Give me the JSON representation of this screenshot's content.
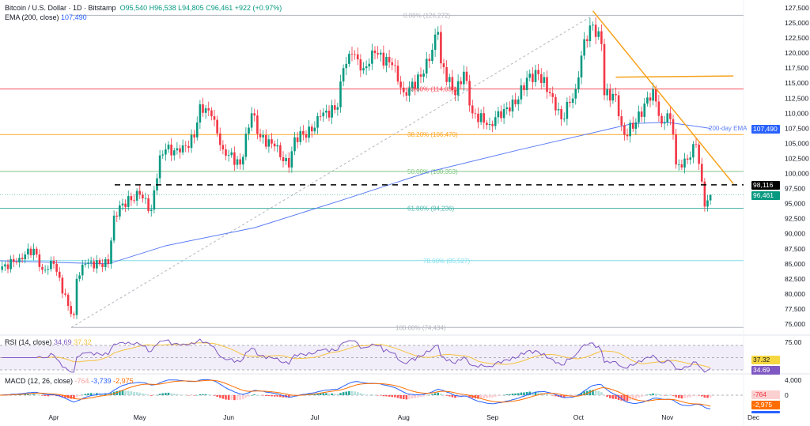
{
  "header": {
    "symbol": "Bitcoin / U.S. Dollar · 1D · Bitstamp",
    "open": "O95,540",
    "high": "H96,538",
    "low": "L94,805",
    "close": "C96,461",
    "change": "+922 (+0.97%)",
    "ema_label": "EMA (200, close)",
    "ema_value": "107,490"
  },
  "rsi_legend": {
    "label": "RSI (14, close)",
    "rsi": "34.69",
    "ma": "37.32"
  },
  "macd_legend": {
    "label": "MACD (12, 26, close)",
    "hist": "-764",
    "macd": "-3,739",
    "signal": "-2,975"
  },
  "price_tags": {
    "ema": "107,490",
    "level": "98,116",
    "last": "96,461",
    "rsi_ma": "37.32",
    "rsi": "34.69",
    "macd_hist": "-764",
    "macd_signal": "-2,975"
  },
  "ema_annotation": "200-day EMA",
  "colors": {
    "up": "#089981",
    "down": "#f23645",
    "ema": "#2962ff",
    "trendline": "#f7a21b",
    "rsi": "#7e57c2",
    "rsi_ma": "#f5c342",
    "macd": "#2962ff",
    "signal": "#ff6d00"
  },
  "chart_data": {
    "type": "candlestick",
    "price_axis": {
      "min": 75000,
      "max": 127500,
      "ticks": [
        "127,500",
        "125,000",
        "122,500",
        "120,000",
        "117,500",
        "115,000",
        "112,500",
        "110,000",
        "107,500",
        "105,000",
        "102,500",
        "100,000",
        "97,500",
        "95,000",
        "92,500",
        "90,000",
        "87,500",
        "85,000",
        "82,500",
        "80,000",
        "77,500",
        "75,000"
      ]
    },
    "time_axis": {
      "ticks": [
        {
          "label": "Apr",
          "date": "2025-04-01"
        },
        {
          "label": "May",
          "date": "2025-05-01"
        },
        {
          "label": "Jun",
          "date": "2025-06-01"
        },
        {
          "label": "Jul",
          "date": "2025-07-01"
        },
        {
          "label": "Aug",
          "date": "2025-08-01"
        },
        {
          "label": "Sep",
          "date": "2025-09-01"
        },
        {
          "label": "Oct",
          "date": "2025-10-01"
        },
        {
          "label": "Nov",
          "date": "2025-11-01"
        },
        {
          "label": "Dec",
          "date": "2025-12-01"
        }
      ]
    },
    "close_keypoints": [
      [
        "2025-03-13",
        84000
      ],
      [
        "2025-03-20",
        86000
      ],
      [
        "2025-03-25",
        87500
      ],
      [
        "2025-03-28",
        84000
      ],
      [
        "2025-04-01",
        85000
      ],
      [
        "2025-04-06",
        78000
      ],
      [
        "2025-04-08",
        76500
      ],
      [
        "2025-04-09",
        82500
      ],
      [
        "2025-04-12",
        85000
      ],
      [
        "2025-04-20",
        85000
      ],
      [
        "2025-04-22",
        93000
      ],
      [
        "2025-04-25",
        95000
      ],
      [
        "2025-05-01",
        96500
      ],
      [
        "2025-05-05",
        94000
      ],
      [
        "2025-05-08",
        103000
      ],
      [
        "2025-05-10",
        104000
      ],
      [
        "2025-05-15",
        103500
      ],
      [
        "2025-05-20",
        106000
      ],
      [
        "2025-05-22",
        111500
      ],
      [
        "2025-05-26",
        109500
      ],
      [
        "2025-05-30",
        104000
      ],
      [
        "2025-06-05",
        101500
      ],
      [
        "2025-06-09",
        110000
      ],
      [
        "2025-06-12",
        106000
      ],
      [
        "2025-06-17",
        104500
      ],
      [
        "2025-06-22",
        101000
      ],
      [
        "2025-06-24",
        106000
      ],
      [
        "2025-06-30",
        107000
      ],
      [
        "2025-07-03",
        109500
      ],
      [
        "2025-07-09",
        111000
      ],
      [
        "2025-07-11",
        117500
      ],
      [
        "2025-07-14",
        119800
      ],
      [
        "2025-07-18",
        117500
      ],
      [
        "2025-07-22",
        120000
      ],
      [
        "2025-07-28",
        118000
      ],
      [
        "2025-08-01",
        113500
      ],
      [
        "2025-08-03",
        114200
      ],
      [
        "2025-08-08",
        116600
      ],
      [
        "2025-08-13",
        123500
      ],
      [
        "2025-08-14",
        118300
      ],
      [
        "2025-08-19",
        113000
      ],
      [
        "2025-08-22",
        116900
      ],
      [
        "2025-08-25",
        110000
      ],
      [
        "2025-08-31",
        108200
      ],
      [
        "2025-09-05",
        110700
      ],
      [
        "2025-09-09",
        111500
      ],
      [
        "2025-09-13",
        115900
      ],
      [
        "2025-09-17",
        116500
      ],
      [
        "2025-09-22",
        112700
      ],
      [
        "2025-09-25",
        109000
      ],
      [
        "2025-09-30",
        114000
      ],
      [
        "2025-10-03",
        122300
      ],
      [
        "2025-10-06",
        124700
      ],
      [
        "2025-10-09",
        121500
      ],
      [
        "2025-10-10",
        113000
      ],
      [
        "2025-10-14",
        113000
      ],
      [
        "2025-10-16",
        108000
      ],
      [
        "2025-10-17",
        106400
      ],
      [
        "2025-10-21",
        108500
      ],
      [
        "2025-10-27",
        114000
      ],
      [
        "2025-10-30",
        108300
      ],
      [
        "2025-11-01",
        110000
      ],
      [
        "2025-11-03",
        106500
      ],
      [
        "2025-11-04",
        101500
      ],
      [
        "2025-11-06",
        101000
      ],
      [
        "2025-11-08",
        102300
      ],
      [
        "2025-11-11",
        104800
      ],
      [
        "2025-11-12",
        101600
      ],
      [
        "2025-11-14",
        94500
      ],
      [
        "2025-11-15",
        95540
      ]
    ],
    "last_candle": {
      "date": "2025-11-16",
      "open": 95540,
      "high": 96538,
      "low": 94805,
      "close": 96461
    },
    "ema200": [
      [
        "2025-03-13",
        85500
      ],
      [
        "2025-04-20",
        85000
      ],
      [
        "2025-05-10",
        88000
      ],
      [
        "2025-06-10",
        91000
      ],
      [
        "2025-07-10",
        95500
      ],
      [
        "2025-08-10",
        100300
      ],
      [
        "2025-09-10",
        103900
      ],
      [
        "2025-10-10",
        107200
      ],
      [
        "2025-10-20",
        108300
      ],
      [
        "2025-11-01",
        108500
      ],
      [
        "2025-11-16",
        107490
      ]
    ],
    "fibonacci": [
      {
        "label": "0.00% (126,272)",
        "value": 126272,
        "color": "#b2b5be"
      },
      {
        "label": "23.60% (114,038)",
        "value": 114038,
        "color": "#f7525f"
      },
      {
        "label": "38.20% (106,470)",
        "value": 106470,
        "color": "#ffa726"
      },
      {
        "label": "50.00% (100,353)",
        "value": 100353,
        "color": "#81c784"
      },
      {
        "label": "61.80% (94,236)",
        "value": 94236,
        "color": "#4db6ac"
      },
      {
        "label": "78.60% (85,527)",
        "value": 85527,
        "color": "#80deea"
      },
      {
        "label": "100.00% (74,434)",
        "value": 74434,
        "color": "#b2b5be"
      }
    ],
    "support_level": 98116,
    "trendlines": [
      {
        "kind": "descending",
        "from": [
          "2025-10-06",
          127000
        ],
        "to": [
          "2025-11-24",
          98300
        ]
      },
      {
        "kind": "horizontal",
        "from": [
          "2025-10-14",
          116000
        ],
        "to": [
          "2025-11-24",
          116200
        ]
      }
    ],
    "rsi_axis": {
      "ticks": [
        "75.00"
      ],
      "upper": 70,
      "middle": 50,
      "lower": 30
    },
    "macd_axis": {
      "ticks": [
        "4,000",
        "0"
      ]
    }
  }
}
